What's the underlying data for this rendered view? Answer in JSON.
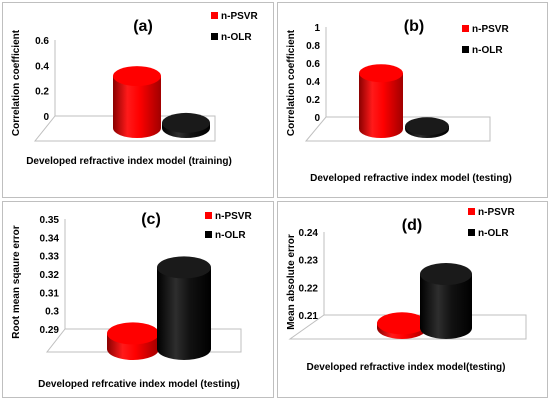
{
  "chart_data": [
    {
      "type": "bar",
      "panel_label": "(a)",
      "categories": [
        "n-PSVR",
        "n-OLR"
      ],
      "values": [
        0.41,
        0.04
      ],
      "colors": [
        "#ff0000",
        "#000000"
      ],
      "legend": [
        "n-PSVR",
        "n-OLR"
      ],
      "xlabel": "Developed refractive index model (training)",
      "ylabel": "Correlation coefficient",
      "ylim": [
        0,
        0.6
      ],
      "yticks": [
        "0",
        "0.2",
        "0.4",
        "0.6"
      ],
      "grid": false,
      "legend_position": "top-right"
    },
    {
      "type": "bar",
      "panel_label": "(b)",
      "categories": [
        "n-PSVR",
        "n-OLR"
      ],
      "values": [
        0.62,
        0.03
      ],
      "colors": [
        "#ff0000",
        "#000000"
      ],
      "legend": [
        "n-PSVR",
        "n-OLR"
      ],
      "xlabel": "Developed refractive index model (testing)",
      "ylabel": "Correlation coefficient",
      "ylim": [
        0,
        1
      ],
      "yticks": [
        "0",
        "0.2",
        "0.4",
        "0.6",
        "0.8",
        "1"
      ],
      "grid": false,
      "legend_position": "top-right"
    },
    {
      "type": "bar",
      "panel_label": "(c)",
      "categories": [
        "n-PSVR",
        "n-OLR"
      ],
      "values": [
        0.2985,
        0.3345
      ],
      "colors": [
        "#ff0000",
        "#000000"
      ],
      "legend": [
        "n-PSVR",
        "n-OLR"
      ],
      "xlabel": "Developed refrcative index model (testing)",
      "ylabel": "Root mean sqaure error",
      "ylim": [
        0.29,
        0.35
      ],
      "yticks": [
        "0.29",
        "0.3",
        "0.31",
        "0.32",
        "0.33",
        "0.34",
        "0.35"
      ],
      "grid": false,
      "legend_position": "top-right"
    },
    {
      "type": "bar",
      "panel_label": "(d)",
      "categories": [
        "n-PSVR",
        "n-OLR"
      ],
      "values": [
        0.2117,
        0.2295
      ],
      "colors": [
        "#ff0000",
        "#000000"
      ],
      "legend": [
        "n-PSVR",
        "n-OLR"
      ],
      "xlabel": "Developed refractive index model(testing)",
      "ylabel": "Mean absolute error",
      "ylim": [
        0.21,
        0.24
      ],
      "yticks": [
        "0.21",
        "0.22",
        "0.23",
        "0.24"
      ],
      "grid": false,
      "legend_position": "top-right"
    }
  ]
}
